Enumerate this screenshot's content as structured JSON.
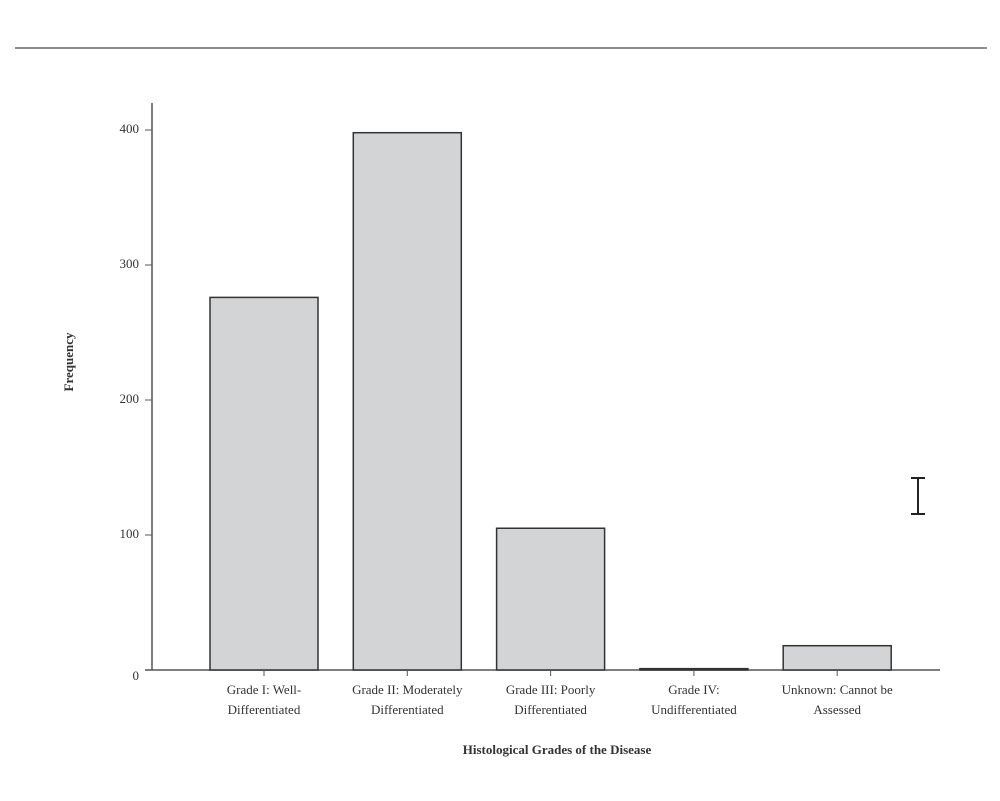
{
  "chart_data": {
    "type": "bar",
    "x_label": "Histological Grades of the Disease",
    "y_label": "Frequency",
    "categories": [
      [
        "Grade I: Well-",
        "Differentiated"
      ],
      [
        "Grade II: Moderately",
        "Differentiated"
      ],
      [
        "Grade III: Poorly",
        "Differentiated"
      ],
      [
        "Grade IV:",
        "Undifferentiated"
      ],
      [
        "Unknown: Cannot be",
        "Assessed"
      ]
    ],
    "values": [
      276,
      398,
      105,
      1,
      18
    ],
    "color": "#d3d4d6",
    "ylim": [
      0,
      400
    ],
    "yticks": [
      0,
      100,
      200,
      300,
      400
    ],
    "grid": false
  }
}
